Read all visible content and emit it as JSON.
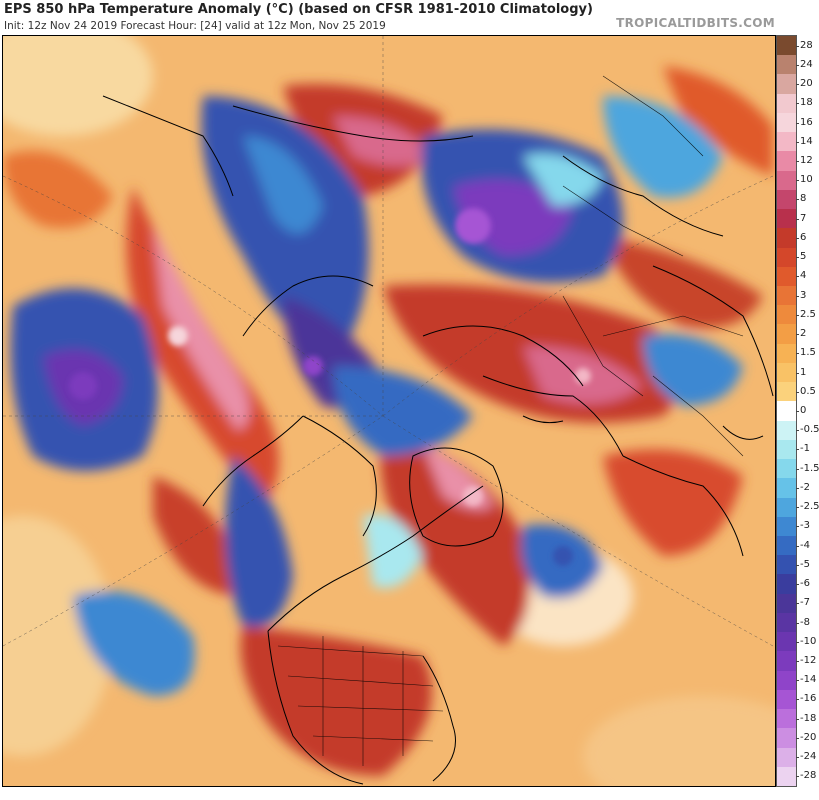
{
  "header": {
    "title": "EPS 850 hPa Temperature Anomaly (°C) (based on CFSR 1981-2010 Climatology)",
    "subtitle": "Init: 12z Nov 24 2019   Forecast Hour: [24]   valid at 12z Mon, Nov 25 2019",
    "brand": "TROPICALTIDBITS.COM"
  },
  "legend": {
    "labels": [
      "28",
      "24",
      "20",
      "18",
      "16",
      "14",
      "12",
      "10",
      "8",
      "7",
      "6",
      "5",
      "4",
      "3",
      "2.5",
      "2",
      "1.5",
      "1",
      "0.5",
      "0",
      "-0.5",
      "-1",
      "-1.5",
      "-2",
      "-2.5",
      "-3",
      "-4",
      "-5",
      "-6",
      "-7",
      "-8",
      "-10",
      "-12",
      "-14",
      "-16",
      "-18",
      "-20",
      "-24",
      "-28"
    ],
    "colors": [
      "#7a4a2e",
      "#b9826e",
      "#d9a7a0",
      "#f2c9cf",
      "#f6d6dc",
      "#f3b8c6",
      "#e98aa6",
      "#d9698c",
      "#c4466c",
      "#b8304c",
      "#c43a2a",
      "#d4472a",
      "#e05a2c",
      "#e87436",
      "#ee8a3c",
      "#f39e45",
      "#f7b254",
      "#f9c266",
      "#fbd27c",
      "#ffffff",
      "#cdf3f5",
      "#a9e8ef",
      "#85d8ec",
      "#66c2e8",
      "#4ea6de",
      "#3e88d2",
      "#356bc2",
      "#3452b0",
      "#3a3d9e",
      "#4b3699",
      "#5a35a3",
      "#6b36b0",
      "#7c3bbd",
      "#8f44c9",
      "#a655d4",
      "#bb6fdc",
      "#cc8ee2",
      "#dcb0e8",
      "#ecd3f0"
    ]
  }
}
